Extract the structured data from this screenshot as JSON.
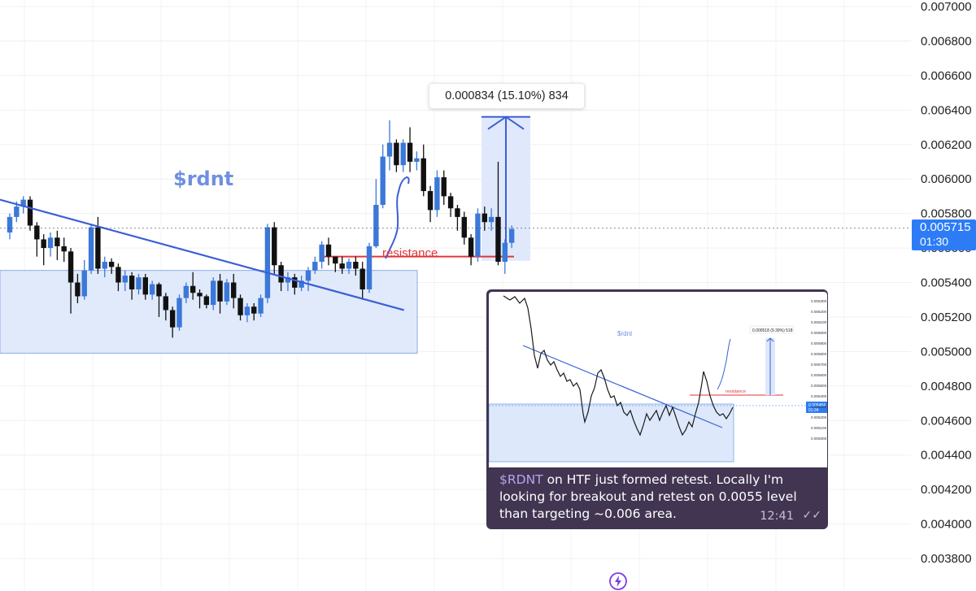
{
  "chart_data": {
    "type": "candlestick",
    "title": "$rdnt",
    "y_axis": {
      "position": "right",
      "ylim": [
        0.0037,
        0.007
      ],
      "ticks": [
        "0.007000",
        "0.006800",
        "0.006600",
        "0.006400",
        "0.006200",
        "0.006000",
        "0.005800",
        "0.005600",
        "0.005400",
        "0.005200",
        "0.005000",
        "0.004800",
        "0.004600",
        "0.004400",
        "0.004200",
        "0.004000",
        "0.003800"
      ]
    },
    "grid": true,
    "current_price": {
      "value": "0.005715",
      "countdown": "01:30"
    },
    "annotations": {
      "resistance_label": "resistance",
      "resistance_level": 0.00555,
      "measure_label": "0.000834 (15.10%) 834",
      "measure_from": 0.005526,
      "measure_to": 0.00636,
      "downtrend_line": [
        [
          0,
          0.00588
        ],
        [
          61,
          0.00524
        ]
      ],
      "support_zone": [
        0.00499,
        0.00547
      ]
    },
    "candles": [
      [
        0.00569,
        0.00578,
        0.00565,
        0.0058
      ],
      [
        0.00578,
        0.00584,
        0.00575,
        0.00587
      ],
      [
        0.00584,
        0.00588,
        0.0058,
        0.0059
      ],
      [
        0.00588,
        0.00573,
        0.0057,
        0.0059
      ],
      [
        0.00573,
        0.00565,
        0.00555,
        0.00575
      ],
      [
        0.00565,
        0.0056,
        0.0055,
        0.00568
      ],
      [
        0.0056,
        0.00566,
        0.00555,
        0.00569
      ],
      [
        0.00566,
        0.00561,
        0.00553,
        0.0057
      ],
      [
        0.00561,
        0.00558,
        0.00552,
        0.00566
      ],
      [
        0.00558,
        0.0054,
        0.00522,
        0.0056
      ],
      [
        0.0054,
        0.00532,
        0.00528,
        0.00545
      ],
      [
        0.00532,
        0.00547,
        0.0053,
        0.00553
      ],
      [
        0.00547,
        0.00572,
        0.00545,
        0.00574
      ],
      [
        0.00572,
        0.00548,
        0.00545,
        0.00578
      ],
      [
        0.00548,
        0.00552,
        0.00543,
        0.00555
      ],
      [
        0.00552,
        0.00549,
        0.00545,
        0.00554
      ],
      [
        0.00549,
        0.0054,
        0.00535,
        0.00551
      ],
      [
        0.0054,
        0.00544,
        0.00535,
        0.00547
      ],
      [
        0.00544,
        0.00536,
        0.0053,
        0.00546
      ],
      [
        0.00536,
        0.00543,
        0.00533,
        0.00545
      ],
      [
        0.00543,
        0.00533,
        0.0053,
        0.00545
      ],
      [
        0.00533,
        0.00539,
        0.0053,
        0.00541
      ],
      [
        0.00539,
        0.00532,
        0.0052,
        0.0054
      ],
      [
        0.00532,
        0.00524,
        0.00518,
        0.00534
      ],
      [
        0.00524,
        0.00514,
        0.00508,
        0.00526
      ],
      [
        0.00514,
        0.00531,
        0.00512,
        0.00533
      ],
      [
        0.00531,
        0.00538,
        0.00528,
        0.0054
      ],
      [
        0.00538,
        0.00534,
        0.0053,
        0.00546
      ],
      [
        0.00534,
        0.00532,
        0.00525,
        0.00536
      ],
      [
        0.00532,
        0.00527,
        0.00525,
        0.00533
      ],
      [
        0.00527,
        0.00541,
        0.00524,
        0.00543
      ],
      [
        0.00541,
        0.00529,
        0.00522,
        0.00545
      ],
      [
        0.00529,
        0.0054,
        0.00527,
        0.00542
      ],
      [
        0.0054,
        0.00531,
        0.00525,
        0.00545
      ],
      [
        0.00531,
        0.00521,
        0.00518,
        0.00533
      ],
      [
        0.00521,
        0.00526,
        0.00517,
        0.00528
      ],
      [
        0.00526,
        0.00522,
        0.00518,
        0.00528
      ],
      [
        0.00522,
        0.00531,
        0.0052,
        0.00533
      ],
      [
        0.00531,
        0.00572,
        0.00528,
        0.00574
      ],
      [
        0.00572,
        0.0055,
        0.00545,
        0.00575
      ],
      [
        0.0055,
        0.0054,
        0.00535,
        0.00552
      ],
      [
        0.0054,
        0.00543,
        0.00535,
        0.00546
      ],
      [
        0.00543,
        0.00537,
        0.00533,
        0.00545
      ],
      [
        0.00537,
        0.00541,
        0.00535,
        0.00544
      ],
      [
        0.00541,
        0.00547,
        0.00535,
        0.00549
      ],
      [
        0.00547,
        0.00552,
        0.00545,
        0.00555
      ],
      [
        0.00552,
        0.00562,
        0.00548,
        0.00564
      ],
      [
        0.00562,
        0.00555,
        0.0055,
        0.00566
      ],
      [
        0.00555,
        0.00551,
        0.00546,
        0.00553
      ],
      [
        0.00551,
        0.00548,
        0.00545,
        0.00555
      ],
      [
        0.00548,
        0.00552,
        0.00545,
        0.00554
      ],
      [
        0.00552,
        0.00548,
        0.00544,
        0.00555
      ],
      [
        0.00548,
        0.00536,
        0.0053,
        0.00552
      ],
      [
        0.00536,
        0.00561,
        0.00534,
        0.00563
      ],
      [
        0.00561,
        0.00585,
        0.0056,
        0.006
      ],
      [
        0.00585,
        0.00613,
        0.00583,
        0.0062
      ],
      [
        0.00613,
        0.00621,
        0.00605,
        0.00634
      ],
      [
        0.00621,
        0.00608,
        0.00604,
        0.00623
      ],
      [
        0.00608,
        0.00621,
        0.00604,
        0.00623
      ],
      [
        0.00621,
        0.0061,
        0.00604,
        0.0063
      ],
      [
        0.0061,
        0.00612,
        0.00605,
        0.00616
      ],
      [
        0.00612,
        0.00593,
        0.0059,
        0.0062
      ],
      [
        0.00593,
        0.00582,
        0.00575,
        0.00596
      ],
      [
        0.00582,
        0.00601,
        0.00578,
        0.00605
      ],
      [
        0.00601,
        0.0059,
        0.00585,
        0.00605
      ],
      [
        0.0059,
        0.00583,
        0.00578,
        0.00592
      ],
      [
        0.00583,
        0.00578,
        0.0057,
        0.00585
      ],
      [
        0.00578,
        0.00566,
        0.00562,
        0.00581
      ],
      [
        0.00566,
        0.00555,
        0.0055,
        0.00568
      ],
      [
        0.00555,
        0.0058,
        0.00552,
        0.00583
      ],
      [
        0.0058,
        0.00575,
        0.0057,
        0.00584
      ],
      [
        0.00575,
        0.00578,
        0.0057,
        0.00583
      ],
      [
        0.00578,
        0.00552,
        0.0055,
        0.0061
      ],
      [
        0.00552,
        0.00563,
        0.00545,
        0.00565
      ],
      [
        0.00563,
        0.00571,
        0.0056,
        0.00573
      ]
    ]
  },
  "inset": {
    "title": "$rdnt",
    "resistance_label": "resistance",
    "measure_label": "0.000518 (9.39%) 518",
    "price_tag": "0.005484",
    "price_tag_time": "01:34",
    "y_ticks": [
      "0.006300",
      "0.006200",
      "0.006100",
      "0.006000",
      "0.005900",
      "0.005800",
      "0.005700",
      "0.005600",
      "0.005500",
      "0.005400",
      "0.005300",
      "0.005200",
      "0.005100",
      "0.005000"
    ],
    "message": {
      "tag": "$RDNT",
      "text": " on HTF just formed retest. Locally I'm looking for breakout and retest on 0.0055 level than targeting ~0.006 area.",
      "time": "12:41",
      "check": "✓✓"
    }
  },
  "colors": {
    "bull": "#3c78d8",
    "bear": "#111111",
    "trendline": "#3b5fd6",
    "zone_fill": "#dde8fb",
    "zone_stroke": "#7fa3e6",
    "resistance": "#e0363a",
    "price_tag": "#2d7cf6",
    "message_bg": "#413552"
  },
  "icons": {
    "bottom": "lightning-bolt-icon"
  }
}
